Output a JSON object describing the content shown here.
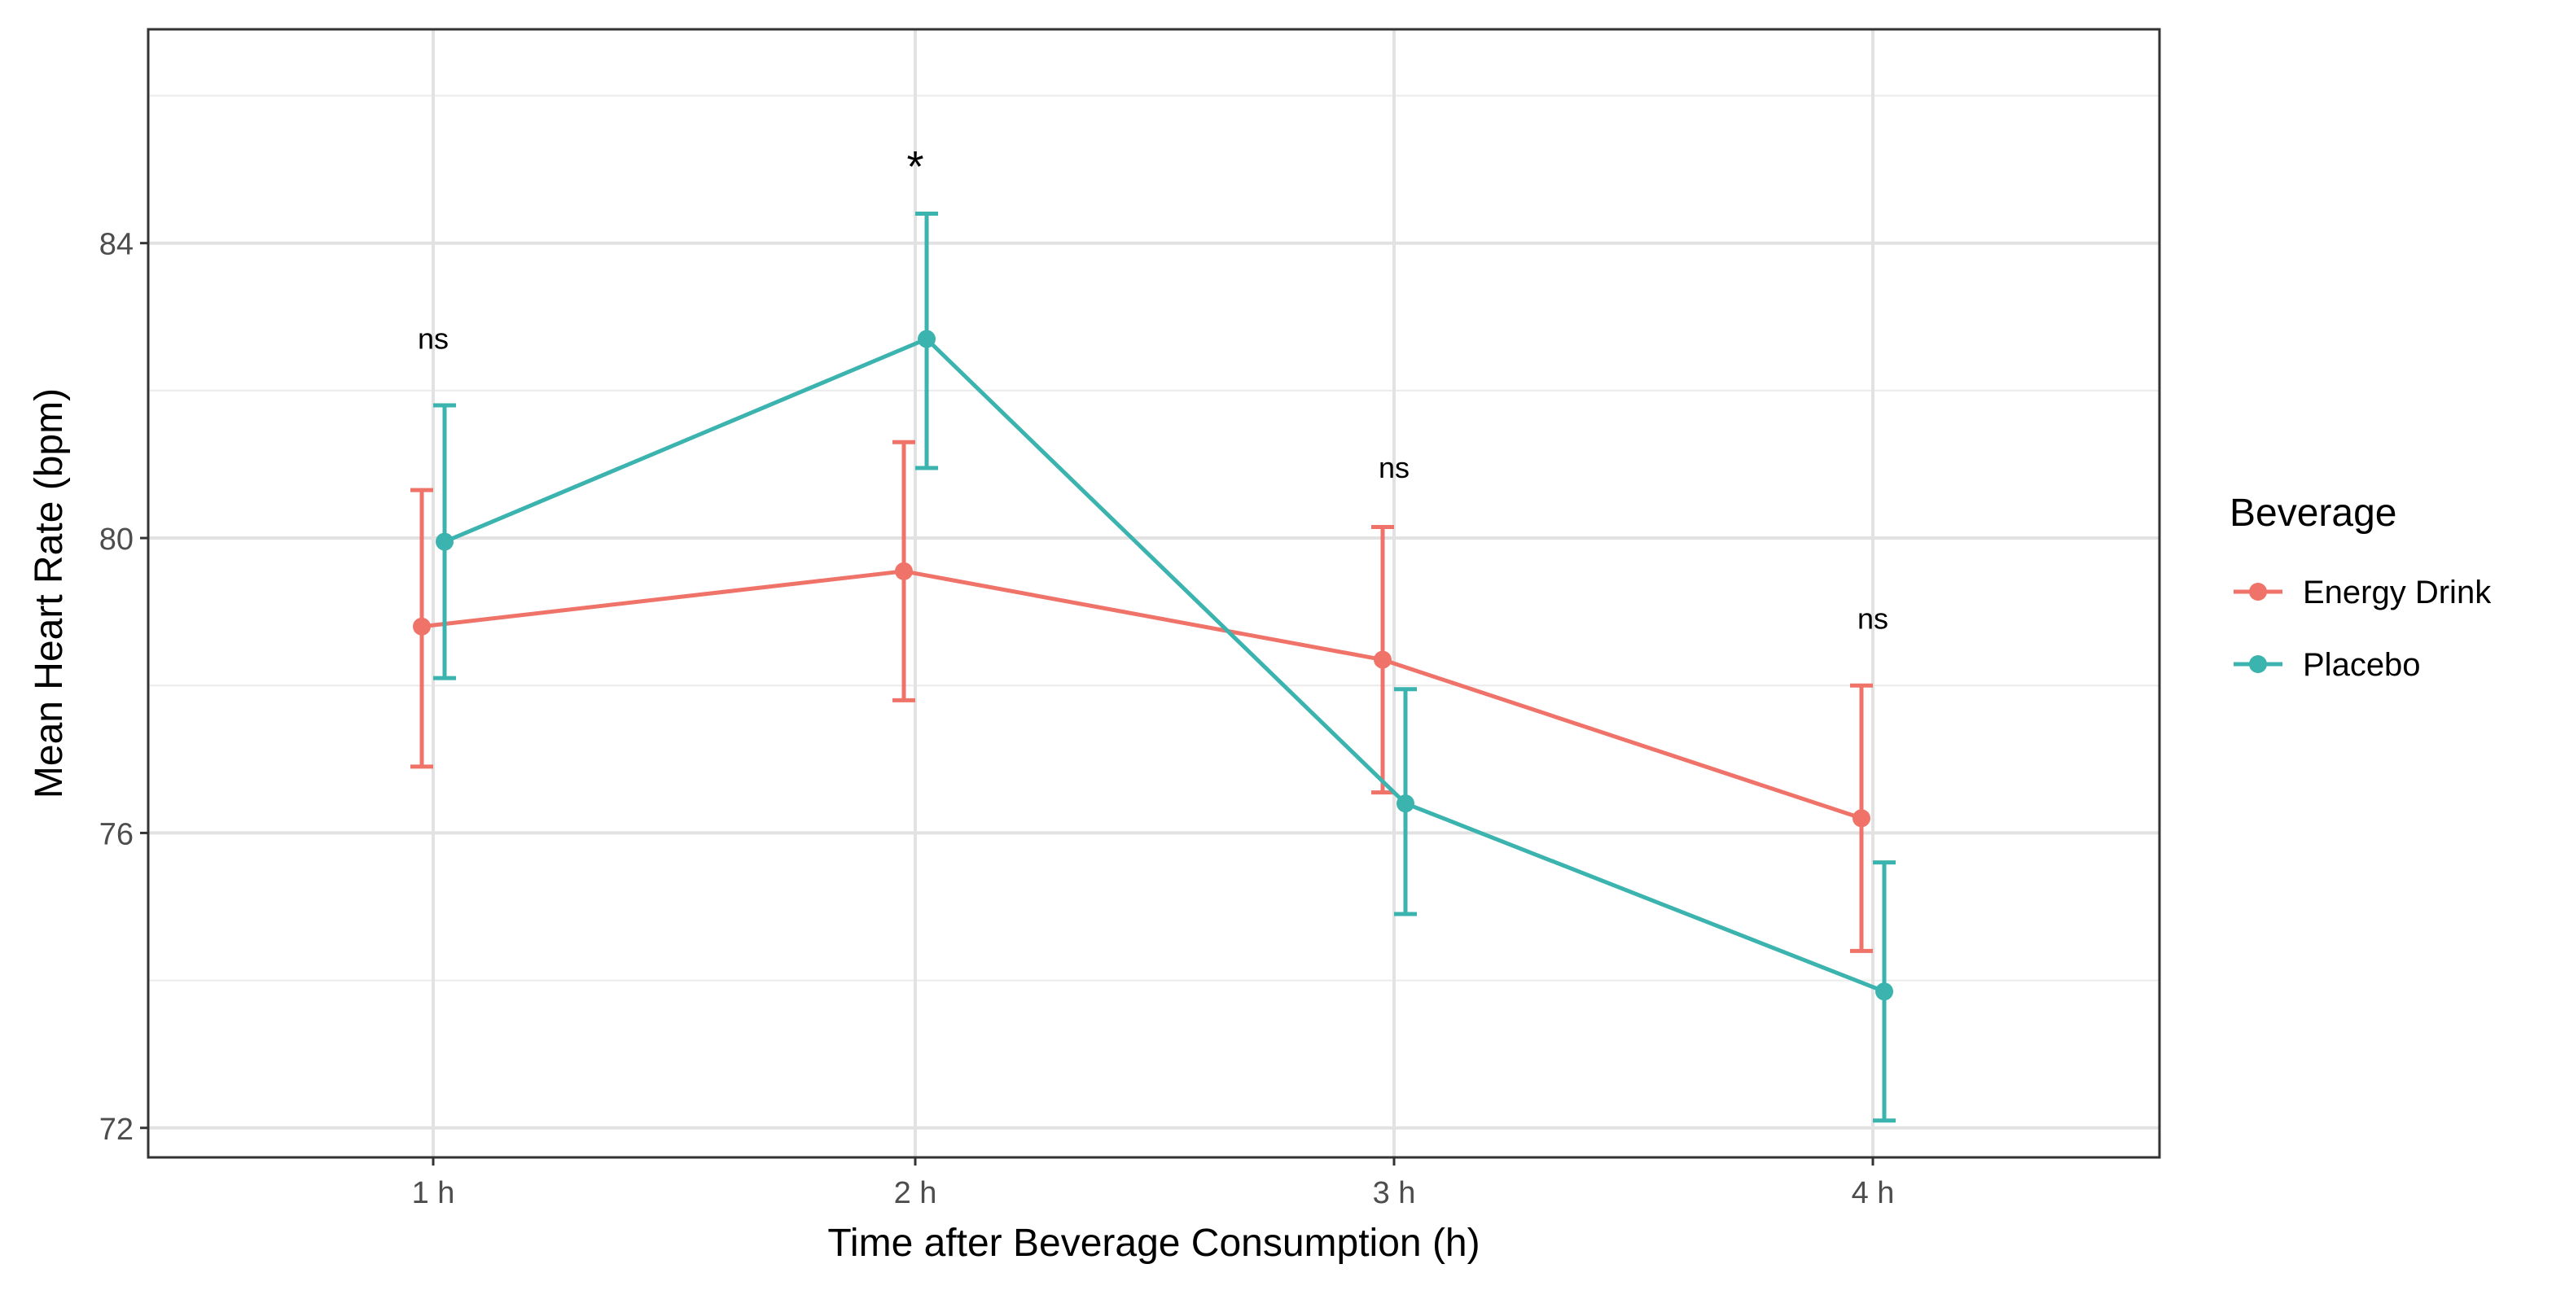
{
  "chart_data": {
    "type": "line",
    "title": "",
    "xlabel": "Time after Beverage Consumption (h)",
    "ylabel": "Mean Heart Rate (bpm)",
    "categories": [
      "1 h",
      "2 h",
      "3 h",
      "4 h"
    ],
    "ylim": [
      71.6,
      86.9
    ],
    "yticks": [
      72,
      76,
      80,
      84
    ],
    "grid": true,
    "legend": {
      "title": "Beverage",
      "position": "right"
    },
    "series": [
      {
        "name": "Energy Drink",
        "color": "#F0736A",
        "values": [
          78.8,
          79.55,
          78.35,
          76.2
        ],
        "error_low": [
          76.9,
          77.8,
          76.55,
          74.4
        ],
        "error_high": [
          80.65,
          81.3,
          80.15,
          78.0
        ]
      },
      {
        "name": "Placebo",
        "color": "#3BB3AE",
        "values": [
          79.95,
          82.7,
          76.4,
          73.85
        ],
        "error_low": [
          78.1,
          80.95,
          74.9,
          72.1
        ],
        "error_high": [
          81.8,
          84.4,
          77.95,
          75.6
        ]
      }
    ],
    "annotations": [
      {
        "category": "1 h",
        "text": "ns",
        "y": 82.7
      },
      {
        "category": "2 h",
        "text": "*",
        "y": 85.1
      },
      {
        "category": "3 h",
        "text": "ns",
        "y": 80.95
      },
      {
        "category": "4 h",
        "text": "ns",
        "y": 78.9
      }
    ]
  }
}
